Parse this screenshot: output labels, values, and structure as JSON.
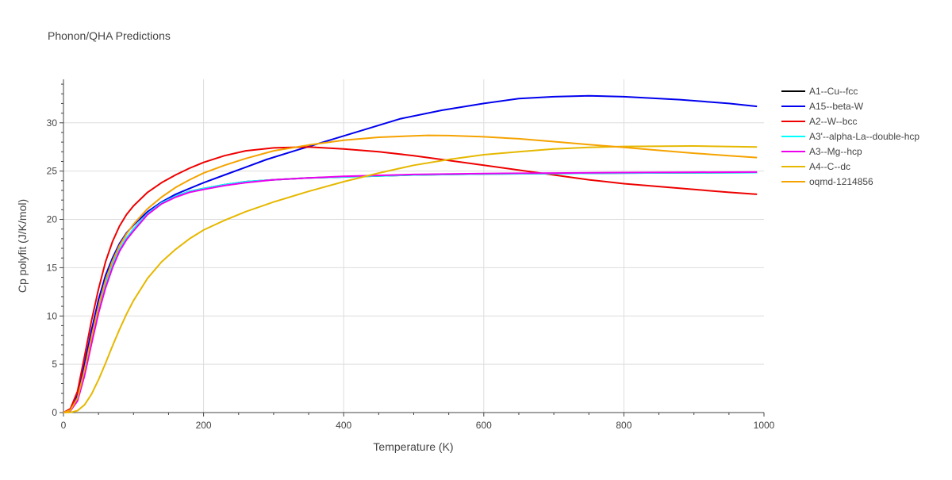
{
  "chart_data": {
    "type": "line",
    "title": "Phonon/QHA Predictions",
    "xlabel": "Temperature (K)",
    "ylabel": "Cp polyfit (J/K/mol)",
    "xlim": [
      0,
      1000
    ],
    "ylim": [
      0,
      34.5
    ],
    "x_ticks": [
      0,
      200,
      400,
      600,
      800,
      1000
    ],
    "y_ticks": [
      0,
      5,
      10,
      15,
      20,
      25,
      30
    ],
    "grid": true,
    "legend_position": "right",
    "series": [
      {
        "name": "A1--Cu--fcc",
        "color": "#000000",
        "x": [
          0,
          10,
          20,
          30,
          40,
          50,
          60,
          70,
          80,
          90,
          100,
          120,
          140,
          160,
          180,
          200,
          230,
          260,
          300,
          350,
          400,
          500,
          600,
          700,
          800,
          900,
          990
        ],
        "y": [
          0,
          0.2,
          1.3,
          4.0,
          7.4,
          10.6,
          13.2,
          15.3,
          16.9,
          18.1,
          19.0,
          20.6,
          21.7,
          22.4,
          22.9,
          23.2,
          23.6,
          23.9,
          24.1,
          24.3,
          24.4,
          24.6,
          24.7,
          24.75,
          24.8,
          24.82,
          24.85
        ]
      },
      {
        "name": "A15--beta-W",
        "color": "#0000ee",
        "x": [
          0,
          10,
          20,
          30,
          40,
          50,
          60,
          70,
          80,
          90,
          100,
          120,
          140,
          160,
          180,
          200,
          230,
          260,
          290,
          330,
          380,
          430,
          480,
          540,
          600,
          650,
          700,
          750,
          800,
          880,
          950,
          990
        ],
        "y": [
          0,
          0.3,
          1.8,
          5.0,
          8.5,
          11.7,
          14.2,
          16.0,
          17.5,
          18.6,
          19.4,
          20.8,
          21.8,
          22.6,
          23.2,
          23.8,
          24.6,
          25.4,
          26.2,
          27.1,
          28.2,
          29.3,
          30.4,
          31.3,
          32.0,
          32.5,
          32.7,
          32.8,
          32.7,
          32.4,
          32.0,
          31.7
        ]
      },
      {
        "name": "A2--W--bcc",
        "color": "#ee0000",
        "x": [
          0,
          10,
          20,
          30,
          40,
          50,
          60,
          70,
          80,
          90,
          100,
          120,
          140,
          160,
          180,
          200,
          230,
          260,
          300,
          350,
          400,
          450,
          500,
          550,
          600,
          650,
          700,
          750,
          800,
          850,
          900,
          950,
          990
        ],
        "y": [
          0,
          0.4,
          2.2,
          5.8,
          9.5,
          12.8,
          15.6,
          17.7,
          19.3,
          20.5,
          21.4,
          22.8,
          23.8,
          24.6,
          25.3,
          25.9,
          26.6,
          27.1,
          27.4,
          27.5,
          27.3,
          27.0,
          26.6,
          26.1,
          25.6,
          25.1,
          24.6,
          24.1,
          23.7,
          23.4,
          23.1,
          22.8,
          22.6
        ]
      },
      {
        "name": "A3'--alpha-La--double-hcp",
        "color": "#00ffff",
        "x": [
          0,
          10,
          20,
          30,
          40,
          50,
          60,
          70,
          80,
          90,
          100,
          120,
          140,
          160,
          180,
          200,
          230,
          260,
          300,
          350,
          400,
          500,
          600,
          700,
          800,
          900,
          990
        ],
        "y": [
          0,
          0.2,
          1.3,
          4.0,
          7.4,
          10.6,
          13.2,
          15.3,
          16.9,
          18.1,
          19.0,
          20.6,
          21.7,
          22.4,
          22.9,
          23.2,
          23.6,
          23.9,
          24.1,
          24.3,
          24.4,
          24.6,
          24.7,
          24.75,
          24.8,
          24.82,
          24.85
        ]
      },
      {
        "name": "A3--Mg--hcp",
        "color": "#ee00ee",
        "x": [
          0,
          10,
          20,
          30,
          40,
          50,
          60,
          70,
          80,
          90,
          100,
          120,
          140,
          160,
          180,
          200,
          230,
          260,
          300,
          350,
          400,
          500,
          600,
          700,
          800,
          900,
          990
        ],
        "y": [
          0,
          0.2,
          1.2,
          3.8,
          7.1,
          10.3,
          12.9,
          15.0,
          16.7,
          17.9,
          18.8,
          20.5,
          21.6,
          22.3,
          22.8,
          23.1,
          23.5,
          23.8,
          24.1,
          24.3,
          24.45,
          24.65,
          24.75,
          24.8,
          24.85,
          24.88,
          24.9
        ]
      },
      {
        "name": "A4--C--dc",
        "color": "#e6b800",
        "x": [
          0,
          10,
          20,
          30,
          40,
          50,
          60,
          70,
          80,
          90,
          100,
          120,
          140,
          160,
          180,
          200,
          230,
          260,
          300,
          350,
          400,
          450,
          500,
          550,
          600,
          650,
          700,
          750,
          800,
          900,
          990
        ],
        "y": [
          0,
          0.02,
          0.2,
          0.8,
          1.9,
          3.4,
          5.1,
          6.9,
          8.6,
          10.2,
          11.6,
          13.9,
          15.6,
          16.9,
          18.0,
          18.9,
          19.9,
          20.8,
          21.8,
          22.9,
          23.9,
          24.8,
          25.6,
          26.2,
          26.7,
          27.0,
          27.3,
          27.45,
          27.55,
          27.6,
          27.5
        ]
      },
      {
        "name": "oqmd-1214856",
        "color": "#f5a300",
        "x": [
          0,
          10,
          20,
          30,
          40,
          50,
          60,
          70,
          80,
          90,
          100,
          120,
          140,
          160,
          180,
          200,
          230,
          260,
          300,
          350,
          400,
          450,
          500,
          520,
          550,
          600,
          650,
          700,
          750,
          800,
          850,
          900,
          950,
          990
        ],
        "y": [
          0,
          0.25,
          1.5,
          4.4,
          7.8,
          11.0,
          13.7,
          15.7,
          17.3,
          18.5,
          19.5,
          21.1,
          22.3,
          23.3,
          24.1,
          24.8,
          25.6,
          26.3,
          27.1,
          27.7,
          28.2,
          28.5,
          28.65,
          28.7,
          28.68,
          28.55,
          28.35,
          28.05,
          27.75,
          27.45,
          27.15,
          26.85,
          26.6,
          26.4
        ]
      }
    ]
  }
}
